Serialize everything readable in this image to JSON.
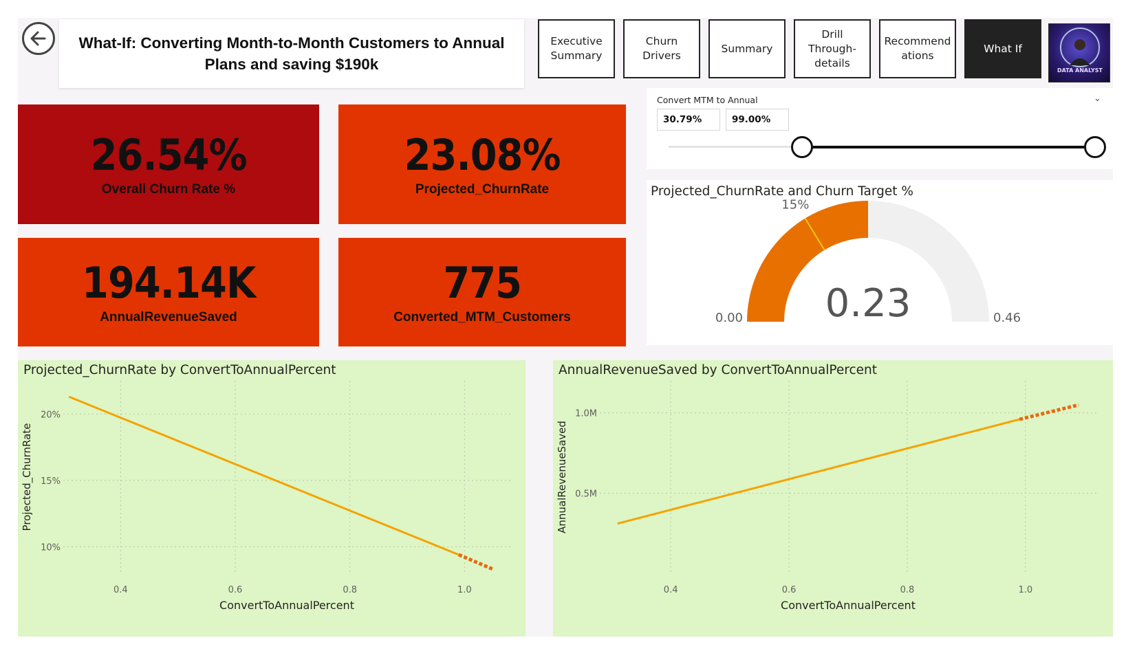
{
  "header": {
    "title": "What-If: Converting Month-to-Month Customers to Annual Plans and saving $190k",
    "back_icon": "back-arrow-icon"
  },
  "nav": {
    "buttons": [
      {
        "label": "Executive Summary",
        "active": false
      },
      {
        "label": "Churn Drivers",
        "active": false
      },
      {
        "label": "Summary",
        "active": false
      },
      {
        "label": "Drill Through-details",
        "active": false
      },
      {
        "label": "Recommendations",
        "active": false
      },
      {
        "label": "What If",
        "active": true
      }
    ],
    "avatar_text": "DATA ANALYST"
  },
  "slicer": {
    "title": "Convert MTM to Annual",
    "min_value": "30.79%",
    "max_value": "99.00%",
    "range_start_fraction": 0.3079,
    "range_end_fraction": 0.99
  },
  "kpis": [
    {
      "value": "26.54%",
      "label": "Overall Churn Rate %",
      "color": "#ad0b0e"
    },
    {
      "value": "23.08%",
      "label": "Projected_ChurnRate",
      "color": "#e23400"
    },
    {
      "value": "194.14K",
      "label": "AnnualRevenueSaved",
      "color": "#e23400"
    },
    {
      "value": "775",
      "label": "Converted_MTM_Customers",
      "color": "#e23400"
    }
  ],
  "gauge": {
    "title": "Projected_ChurnRate and Churn Target %",
    "value": 0.23,
    "value_label": "0.23",
    "min": 0.0,
    "min_label": "0.00",
    "max": 0.46,
    "max_label": "0.46",
    "target": 0.15,
    "target_label": "15%",
    "fill_color": "#e87000",
    "track_color": "#f0f0f0",
    "target_color": "#f2c811"
  },
  "chart_data": [
    {
      "type": "line",
      "title": "Projected_ChurnRate by ConvertToAnnualPercent",
      "xlabel": "ConvertToAnnualPercent",
      "ylabel": "Projected_ChurnRate",
      "xlim": [
        0.3,
        1.08
      ],
      "ylim": [
        0.08,
        0.225
      ],
      "xticks": [
        0.4,
        0.6,
        0.8,
        1.0
      ],
      "xtick_labels": [
        "0.4",
        "0.6",
        "0.8",
        "1.0"
      ],
      "yticks": [
        0.1,
        0.15,
        0.2
      ],
      "ytick_labels": [
        "10%",
        "15%",
        "20%"
      ],
      "grid": true,
      "line_color": "#f5a300",
      "forecast_color": "#e56a10",
      "series": [
        {
          "x": [
            0.31,
            0.99
          ],
          "y": [
            0.213,
            0.094
          ],
          "style": "solid"
        },
        {
          "x": [
            0.99,
            1.05
          ],
          "y": [
            0.094,
            0.083
          ],
          "style": "dashed"
        }
      ]
    },
    {
      "type": "line",
      "title": "AnnualRevenueSaved by ConvertToAnnualPercent",
      "xlabel": "ConvertToAnnualPercent",
      "ylabel": "AnnualRevenueSaved",
      "xlim": [
        0.28,
        1.12
      ],
      "ylim": [
        0.0,
        1.2
      ],
      "xticks": [
        0.4,
        0.6,
        0.8,
        1.0
      ],
      "xtick_labels": [
        "0.4",
        "0.6",
        "0.8",
        "1.0"
      ],
      "yticks": [
        0.5,
        1.0
      ],
      "ytick_labels": [
        "0.5M",
        "1.0M"
      ],
      "grid": true,
      "line_color": "#f5a300",
      "forecast_color": "#e56a10",
      "series": [
        {
          "x": [
            0.31,
            0.99
          ],
          "y": [
            0.31,
            0.96
          ],
          "style": "solid"
        },
        {
          "x": [
            0.99,
            1.09
          ],
          "y": [
            0.96,
            1.05
          ],
          "style": "dashed"
        }
      ]
    }
  ]
}
